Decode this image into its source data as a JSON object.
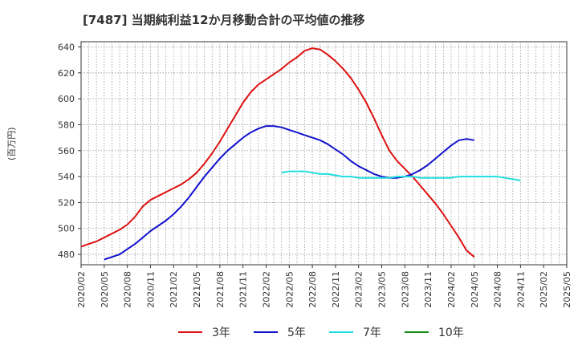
{
  "chart_data": {
    "type": "line",
    "title": "[7487]  当期純利益12か月移動合計の平均値の推移",
    "ylabel": "(百万円)",
    "xlabel": "",
    "ylim": [
      472,
      644
    ],
    "yticks": [
      480,
      500,
      520,
      540,
      560,
      580,
      600,
      620,
      640
    ],
    "grid": true,
    "legend_position": "bottom",
    "x_tick_labels": [
      "2020/02",
      "2020/05",
      "2020/08",
      "2020/11",
      "2021/02",
      "2021/05",
      "2021/08",
      "2021/11",
      "2022/02",
      "2022/05",
      "2022/08",
      "2022/11",
      "2023/02",
      "2023/05",
      "2023/08",
      "2023/11",
      "2024/02",
      "2024/05",
      "2024/08",
      "2024/11",
      "2025/02",
      "2025/05"
    ],
    "x_start": "2020/02",
    "x_end": "2025/05",
    "series": [
      {
        "name": "3年",
        "color": "#dd1111",
        "start": "2020/02",
        "values": [
          486,
          488,
          490,
          493,
          496,
          499,
          503,
          509,
          517,
          522,
          525,
          528,
          531,
          534,
          538,
          543,
          550,
          558,
          567,
          577,
          587,
          597,
          605,
          611,
          615,
          619,
          623,
          628,
          632,
          637,
          639,
          638,
          634,
          629,
          623,
          616,
          607,
          597,
          585,
          572,
          560,
          552,
          546,
          540,
          533,
          526,
          519,
          511,
          502,
          493,
          483,
          478
        ]
      },
      {
        "name": "5年",
        "color": "#1111cc",
        "start": "2020/05",
        "values": [
          476,
          478,
          480,
          484,
          488,
          493,
          498,
          502,
          506,
          511,
          517,
          524,
          532,
          540,
          547,
          554,
          560,
          565,
          570,
          574,
          577,
          579,
          579,
          578,
          576,
          574,
          572,
          570,
          568,
          565,
          561,
          557,
          552,
          548,
          545,
          542,
          540,
          539,
          539,
          540,
          542,
          545,
          549,
          554,
          559,
          564,
          568,
          569,
          568
        ]
      },
      {
        "name": "7年",
        "color": "#22dddd",
        "start": "2022/04",
        "values": [
          543,
          544,
          544,
          544,
          543,
          542,
          542,
          541,
          540,
          540,
          539,
          539,
          539,
          539,
          539,
          540,
          540,
          540,
          539,
          539,
          539,
          539,
          539,
          540,
          540,
          540,
          540,
          540,
          540,
          539,
          538,
          537
        ]
      },
      {
        "name": "10年",
        "color": "#118811",
        "start": "2025/02",
        "values": []
      }
    ]
  }
}
